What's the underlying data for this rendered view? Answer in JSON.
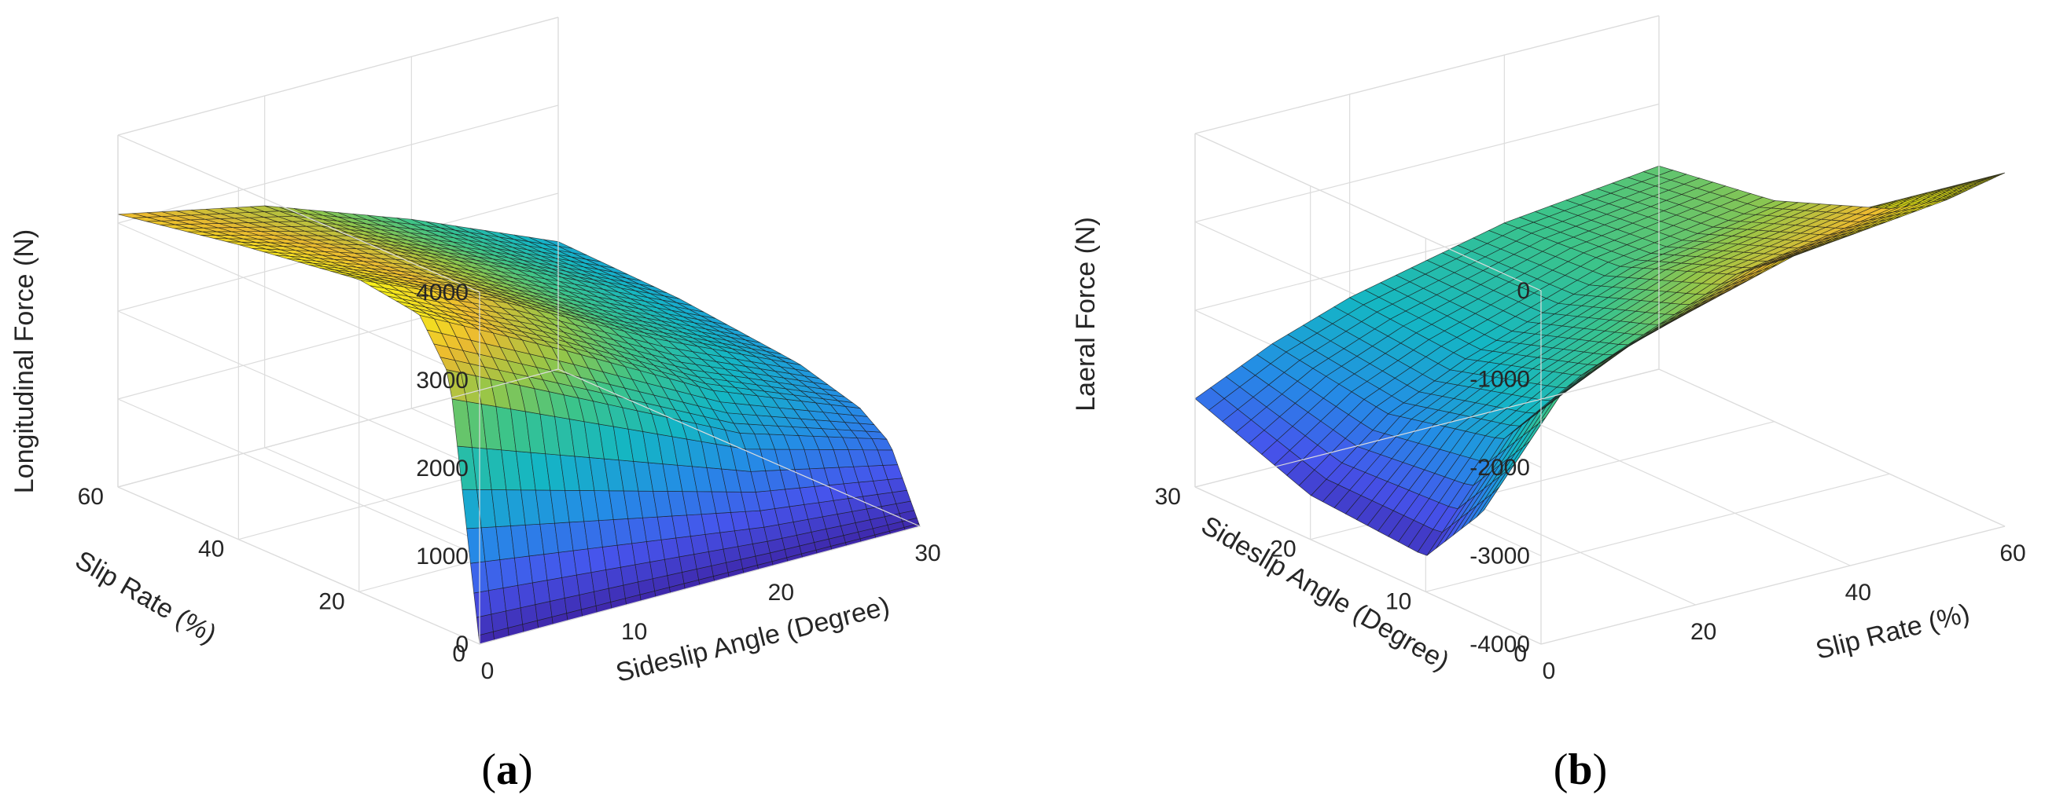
{
  "chart_data": [
    {
      "type": "surface",
      "panel_label": "a",
      "xlabel": "Sideslip Angle (Degree)",
      "ylabel": "Slip Rate (%)",
      "zlabel": "Longitudinal Force (N)",
      "xlim": [
        0,
        30
      ],
      "ylim": [
        0,
        60
      ],
      "zlim": [
        0,
        4000
      ],
      "xticks": [
        "0",
        "10",
        "20",
        "30"
      ],
      "yticks": [
        "0",
        "20",
        "40",
        "60"
      ],
      "zticks": [
        "0",
        "1000",
        "2000",
        "3000",
        "4000"
      ],
      "colormap": "parula",
      "grid": true,
      "surface_samples": {
        "sideslip_angle": [
          0,
          10,
          20,
          30
        ],
        "slip_rate": [
          0,
          5,
          10,
          20,
          40,
          60
        ],
        "force": [
          [
            0,
            0,
            0,
            0
          ],
          [
            2900,
            2100,
            1300,
            800
          ],
          [
            3450,
            2600,
            1700,
            1050
          ],
          [
            3550,
            2850,
            2000,
            1250
          ],
          [
            3350,
            2850,
            2150,
            1400
          ],
          [
            3100,
            2750,
            2150,
            1450
          ]
        ]
      }
    },
    {
      "type": "surface",
      "panel_label": "b",
      "xlabel": "Slip Rate (%)",
      "ylabel": "Sideslip Angle (Degree)",
      "zlabel": "Laeral Force (N)",
      "xlim": [
        0,
        60
      ],
      "ylim": [
        0,
        30
      ],
      "zlim": [
        -4000,
        0
      ],
      "xticks": [
        "0",
        "20",
        "40",
        "60"
      ],
      "yticks": [
        "0",
        "10",
        "20",
        "30"
      ],
      "zticks": [
        "-4000",
        "-3000",
        "-2000",
        "-1000",
        "0"
      ],
      "colormap": "parula",
      "grid": true,
      "surface_samples": {
        "slip_rate": [
          0,
          10,
          20,
          40,
          60
        ],
        "sideslip_angle": [
          0,
          5,
          10,
          20,
          30
        ],
        "force": [
          [
            0,
            0,
            0,
            0,
            0
          ],
          [
            -2800,
            -1700,
            -1300,
            -800,
            -600
          ],
          [
            -3600,
            -2500,
            -2000,
            -1300,
            -1000
          ],
          [
            -3500,
            -2800,
            -2400,
            -1800,
            -1500
          ],
          [
            -3000,
            -2600,
            -2300,
            -1900,
            -1700
          ]
        ]
      }
    }
  ]
}
